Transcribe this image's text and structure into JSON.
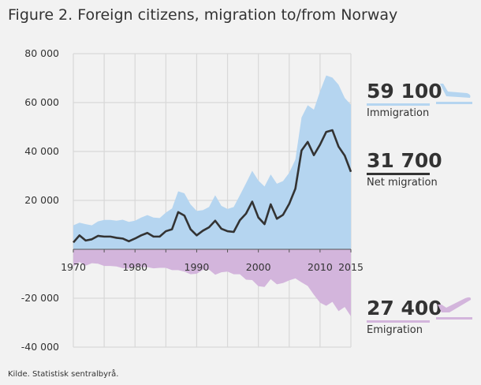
{
  "chart_data": {
    "type": "area",
    "title": "Figure 2. Foreign citizens, migration to/from Norway",
    "x": [
      1970,
      1971,
      1972,
      1973,
      1974,
      1975,
      1976,
      1977,
      1978,
      1979,
      1980,
      1981,
      1982,
      1983,
      1984,
      1985,
      1986,
      1987,
      1988,
      1989,
      1990,
      1991,
      1992,
      1993,
      1994,
      1995,
      1996,
      1997,
      1998,
      1999,
      2000,
      2001,
      2002,
      2003,
      2004,
      2005,
      2006,
      2007,
      2008,
      2009,
      2010,
      2011,
      2012,
      2013,
      2014,
      2015
    ],
    "xticks": [
      "1970",
      "1980",
      "1990",
      "2000",
      "2010",
      "2015"
    ],
    "yticks": [
      "80 000",
      "60 000",
      "40 000",
      "20 000",
      "",
      "-20 000",
      "-40 000"
    ],
    "ylim": [
      -40000,
      80000
    ],
    "grid": true,
    "series": [
      {
        "name": "Immigration",
        "kind": "area",
        "color": "#b5d5f0",
        "values": [
          9800,
          10900,
          10300,
          9800,
          11400,
          12000,
          12000,
          11700,
          12100,
          11200,
          11700,
          13000,
          14000,
          13000,
          12800,
          15000,
          16700,
          23700,
          22900,
          18400,
          15700,
          16000,
          17300,
          22100,
          17800,
          16500,
          17300,
          22100,
          27000,
          32100,
          28100,
          25700,
          30600,
          26800,
          27900,
          31300,
          36700,
          53900,
          58900,
          57100,
          64600,
          71100,
          70200,
          67300,
          61900,
          59100
        ]
      },
      {
        "name": "Emigration",
        "kind": "area-negative",
        "color": "#d3b5dc",
        "values": [
          7000,
          5200,
          6700,
          5700,
          5900,
          6800,
          6800,
          7000,
          7700,
          7900,
          7300,
          7300,
          7300,
          7800,
          7600,
          7600,
          8500,
          8500,
          9100,
          10200,
          10000,
          8400,
          8300,
          10400,
          9400,
          9100,
          10200,
          10200,
          12400,
          12600,
          15100,
          15400,
          12200,
          14300,
          13800,
          12700,
          11900,
          13500,
          15000,
          18600,
          21800,
          23100,
          21500,
          25300,
          23600,
          27400
        ]
      },
      {
        "name": "Net migration",
        "kind": "line",
        "color": "#333333",
        "values": [
          2800,
          5700,
          3600,
          4100,
          5500,
          5200,
          5200,
          4700,
          4400,
          3300,
          4400,
          5700,
          6700,
          5200,
          5200,
          7400,
          8200,
          15200,
          13800,
          8200,
          5700,
          7600,
          9000,
          11700,
          8400,
          7400,
          7100,
          11900,
          14600,
          19500,
          13000,
          10300,
          18400,
          12500,
          14100,
          18600,
          24800,
          40400,
          43900,
          38500,
          42800,
          48000,
          48700,
          42000,
          38300,
          31700
        ]
      }
    ]
  },
  "callouts": {
    "immigration": {
      "value": "59 100",
      "label": "Immigration",
      "icon": "plane-landing-icon"
    },
    "net": {
      "value": "31 700",
      "label": "Net migration"
    },
    "emigration": {
      "value": "27 400",
      "label": "Emigration",
      "icon": "plane-takeoff-icon"
    }
  },
  "source": "Kilde. Statistisk sentralbyrå."
}
